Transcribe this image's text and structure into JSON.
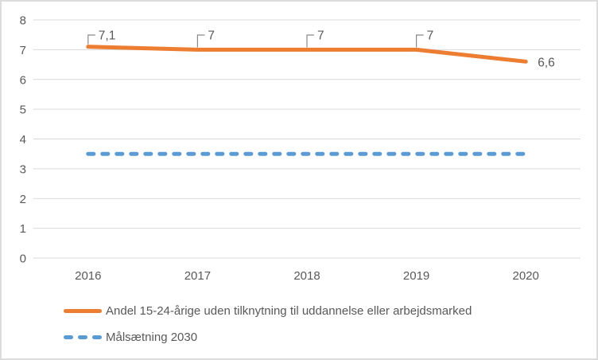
{
  "chart_data": {
    "type": "line",
    "categories": [
      "2016",
      "2017",
      "2018",
      "2019",
      "2020"
    ],
    "series": [
      {
        "name": "Andel 15-24-årige uden tilknytning til uddannelse eller arbejdsmarked",
        "values": [
          7.1,
          7,
          7,
          7,
          6.6
        ],
        "labels": [
          "7,1",
          "7",
          "7",
          "7",
          "6,6"
        ],
        "label_callouts": [
          true,
          true,
          true,
          true,
          false
        ],
        "color": "#ED7D31",
        "style": "solid"
      },
      {
        "name": "Målsætning 2030",
        "values": [
          3.5,
          3.5,
          3.5,
          3.5,
          3.5
        ],
        "color": "#5B9BD5",
        "style": "dashed"
      }
    ],
    "title": "",
    "xlabel": "",
    "ylabel": "",
    "ylim": [
      0,
      8
    ],
    "yticks": [
      0,
      1,
      2,
      3,
      4,
      5,
      6,
      7,
      8
    ],
    "grid": true,
    "legend_position": "bottom-left",
    "colors": {
      "grid": "#D9D9D9",
      "axis_text": "#595959",
      "data_label_text": "#595959",
      "leader_line": "#898989",
      "chart_border": "#DCDCDC",
      "background": "#FFFFFF"
    }
  }
}
